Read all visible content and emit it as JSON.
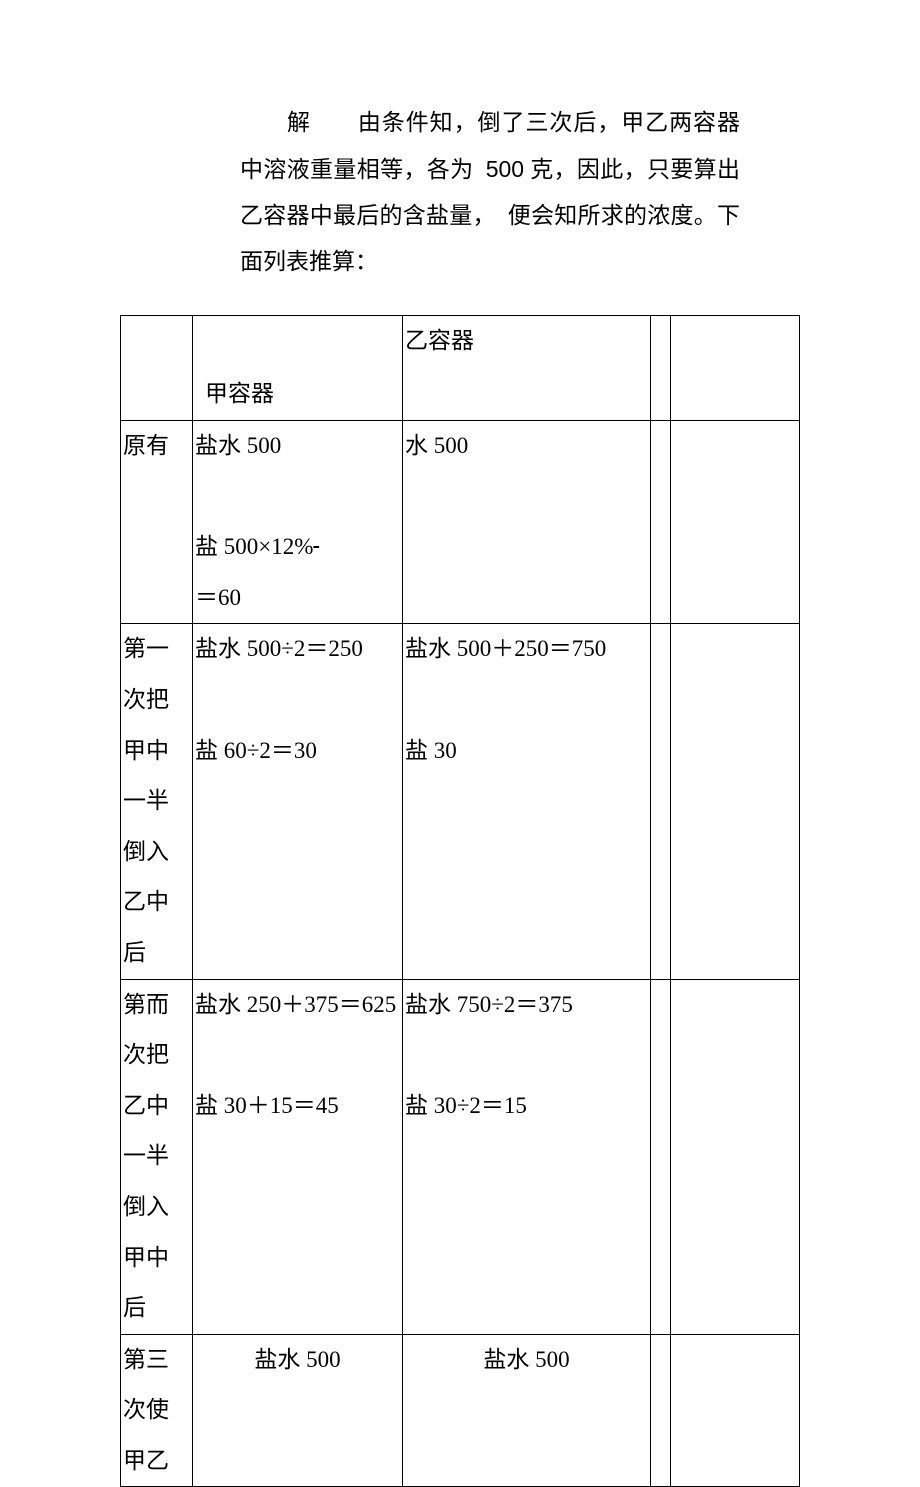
{
  "intro": {
    "prefix": "解",
    "body_1": "由条件知，倒了三次后，甲乙两容器中溶液重量相等，各为",
    "amount": "500",
    "body_2": "克，因此，只要算出乙容器中最后的含盐量，",
    "body_3": "便会知所求的浓度。下面列表推算："
  },
  "table": {
    "header": {
      "col2": "甲容器",
      "col3": "乙容器"
    },
    "rows": [
      {
        "label": "原有",
        "jia_line1": "盐水 500",
        "jia_line2_pre": "盐 500×12%",
        "jia_line2_post": "＝60",
        "yi_line1": "水 500",
        "yi_line2": ""
      },
      {
        "label": "第一次把甲中一半倒入乙中后",
        "jia_line1": "盐水 500÷2＝250",
        "jia_line2": "盐 60÷2＝30",
        "yi_line1": "盐水 500＋250＝750",
        "yi_line2": "盐 30"
      },
      {
        "label": "第而次把乙中一半倒入甲中后",
        "jia_line1": "盐水 250＋375＝625",
        "jia_line2": "盐 30＋15＝45",
        "yi_line1": "盐水 750÷2＝375",
        "yi_line2": "盐 30÷2＝15"
      },
      {
        "label": "第三次使甲乙",
        "jia_line1": "盐水 500",
        "yi_line1": "盐水 500"
      }
    ]
  },
  "style": {
    "background_color": "#ffffff",
    "text_color": "#000000",
    "border_color": "#000000",
    "fontsize_body": 23,
    "font_family_cjk": "SimSun",
    "font_family_num": "Arial"
  }
}
